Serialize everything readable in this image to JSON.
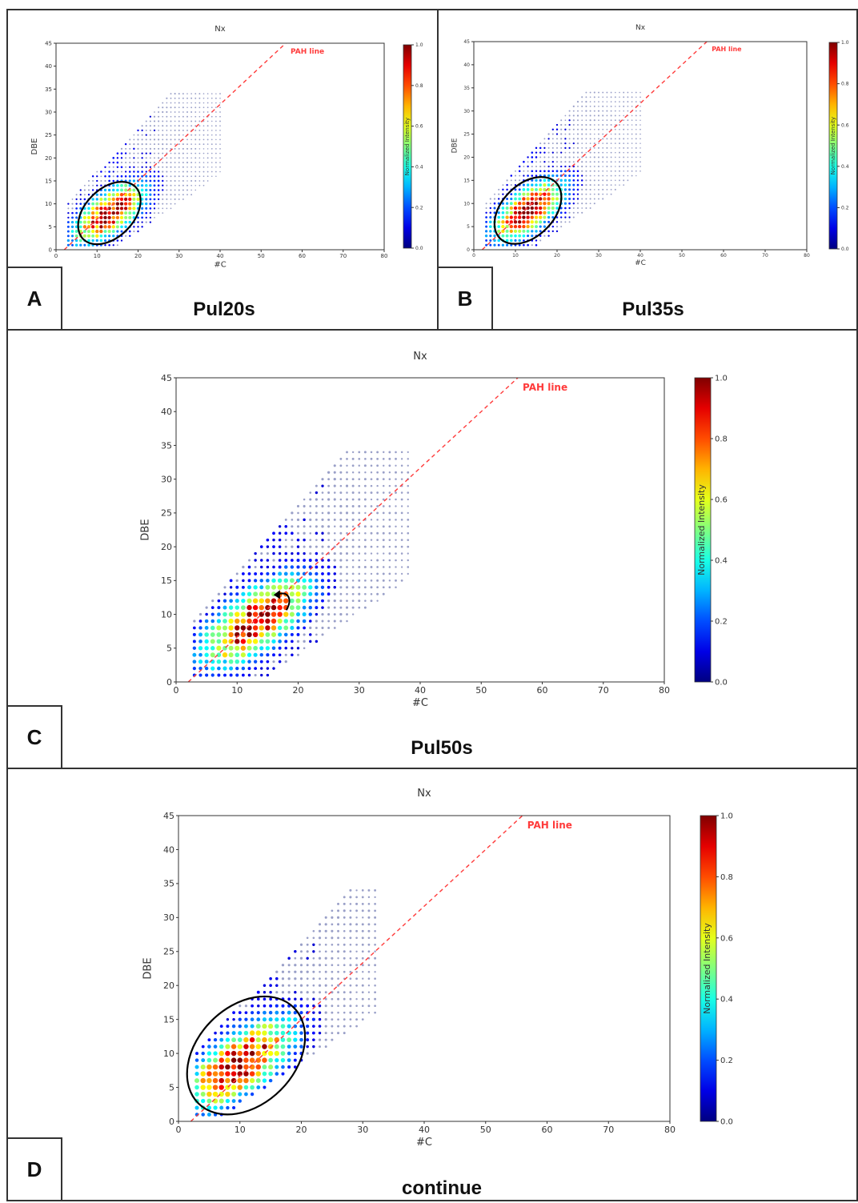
{
  "panels": [
    {
      "letter": "A",
      "caption": "Pul20s"
    },
    {
      "letter": "B",
      "caption": "Pul35s"
    },
    {
      "letter": "C",
      "caption": "Pul50s"
    },
    {
      "letter": "D",
      "caption": "continue"
    }
  ],
  "chart_data": [
    {
      "panel": "A",
      "type": "scatter",
      "title": "Nx",
      "xlabel": "#C",
      "ylabel": "DBE",
      "xlim": [
        0,
        80
      ],
      "ylim": [
        0,
        45
      ],
      "xticks": [
        0,
        10,
        20,
        30,
        40,
        50,
        60,
        70,
        80
      ],
      "yticks": [
        0,
        5,
        10,
        15,
        20,
        25,
        30,
        35,
        40,
        45
      ],
      "colorbar": {
        "label": "Normalized Intensity",
        "ticks": [
          "0.0",
          "0.2",
          "0.4",
          "0.6",
          "0.8",
          "1.0"
        ],
        "colormap": "jet"
      },
      "reference_line": {
        "label": "PAH line",
        "from": [
          2,
          0
        ],
        "to": [
          56,
          45
        ],
        "color": "#ff3b3b"
      },
      "grid": false,
      "distribution": {
        "cx": 13,
        "cy": 8,
        "x_range": [
          3,
          40
        ],
        "upper_slope": 0.95,
        "upper_offset": 7,
        "lower_slope": 0.62,
        "lower_offset": -8
      },
      "annotation": {
        "shape": "ellipse",
        "cx": 13,
        "cy": 8,
        "rx": 9,
        "ry": 3.3
      }
    },
    {
      "panel": "B",
      "type": "scatter",
      "title": "Nx",
      "xlabel": "#C",
      "ylabel": "DBE",
      "xlim": [
        0,
        80
      ],
      "ylim": [
        0,
        45
      ],
      "xticks": [
        0,
        10,
        20,
        30,
        40,
        50,
        60,
        70,
        80
      ],
      "yticks": [
        0,
        5,
        10,
        15,
        20,
        25,
        30,
        35,
        40,
        45
      ],
      "colorbar": {
        "label": "Normalized Intensity",
        "ticks": [
          "0.0",
          "0.2",
          "0.4",
          "0.6",
          "0.8",
          "1.0"
        ],
        "colormap": "jet"
      },
      "reference_line": {
        "label": "PAH line",
        "from": [
          2,
          0
        ],
        "to": [
          56,
          45
        ],
        "color": "#ff3b3b"
      },
      "grid": false,
      "distribution": {
        "cx": 13,
        "cy": 8.5,
        "x_range": [
          3,
          40
        ],
        "upper_slope": 1.0,
        "upper_offset": 7,
        "lower_slope": 0.62,
        "lower_offset": -8
      },
      "annotation": {
        "shape": "ellipse",
        "cx": 13,
        "cy": 8.5,
        "rx": 9.5,
        "ry": 3.5
      }
    },
    {
      "panel": "C",
      "type": "scatter",
      "title": "Nx",
      "xlabel": "#C",
      "ylabel": "DBE",
      "xlim": [
        0,
        80
      ],
      "ylim": [
        0,
        45
      ],
      "xticks": [
        0,
        10,
        20,
        30,
        40,
        50,
        60,
        70,
        80
      ],
      "yticks": [
        0,
        5,
        10,
        15,
        20,
        25,
        30,
        35,
        40,
        45
      ],
      "colorbar": {
        "label": "Normalized Intensity",
        "ticks": [
          "0.0",
          "0.2",
          "0.4",
          "0.6",
          "0.8",
          "1.0"
        ],
        "colormap": "jet"
      },
      "reference_line": {
        "label": "PAH line",
        "from": [
          2,
          0
        ],
        "to": [
          56,
          45
        ],
        "color": "#ff3b3b"
      },
      "grid": false,
      "distribution": {
        "cx": 13,
        "cy": 9,
        "x_range": [
          3,
          38
        ],
        "upper_slope": 1.0,
        "upper_offset": 6,
        "lower_slope": 0.62,
        "lower_offset": -8
      },
      "annotation": {
        "shape": "arrow",
        "x": 16.5,
        "y": 13
      }
    },
    {
      "panel": "D",
      "type": "scatter",
      "title": "Nx",
      "xlabel": "#C",
      "ylabel": "DBE",
      "xlim": [
        0,
        80
      ],
      "ylim": [
        0,
        45
      ],
      "xticks": [
        0,
        10,
        20,
        30,
        40,
        50,
        60,
        70,
        80
      ],
      "yticks": [
        0,
        5,
        10,
        15,
        20,
        25,
        30,
        35,
        40,
        45
      ],
      "colorbar": {
        "label": "Normalized Intensity",
        "ticks": [
          "0.0",
          "0.2",
          "0.4",
          "0.6",
          "0.8",
          "1.0"
        ],
        "colormap": "jet"
      },
      "reference_line": {
        "label": "PAH line",
        "from": [
          2,
          0
        ],
        "to": [
          56,
          45
        ],
        "color": "#ff3b3b"
      },
      "grid": false,
      "distribution": {
        "cx": 10,
        "cy": 8.5,
        "x_range": [
          3,
          32
        ],
        "upper_slope": 0.95,
        "upper_offset": 7,
        "lower_slope": 0.6,
        "lower_offset": -3
      },
      "annotation": {
        "shape": "ellipse",
        "cx": 11,
        "cy": 9.7,
        "rx": 11,
        "ry": 4.5
      }
    }
  ]
}
